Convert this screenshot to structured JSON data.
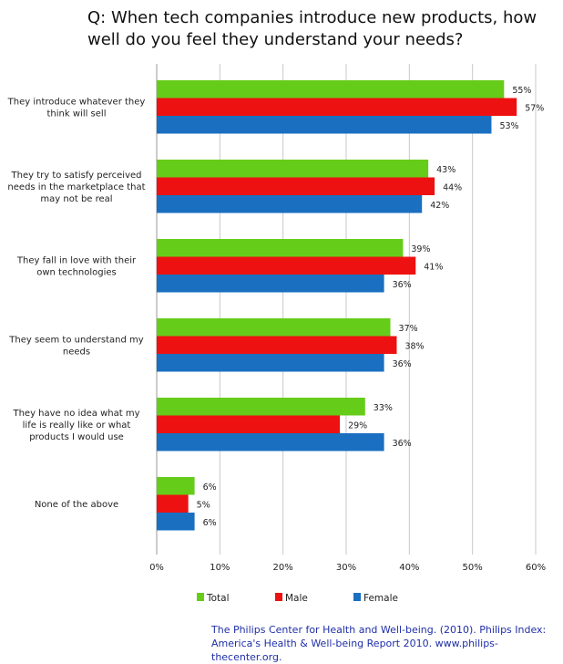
{
  "chart_data": {
    "type": "bar",
    "orientation": "horizontal",
    "title": "Q: When tech companies introduce new products, how well do you feel they understand your needs?",
    "categories": [
      [
        "They introduce whatever they",
        "think will sell"
      ],
      [
        "They try to satisfy perceived",
        "needs in the marketplace that",
        "may not be real"
      ],
      [
        "They fall in love with their",
        "own technologies"
      ],
      [
        "They seem to understand my",
        "needs"
      ],
      [
        "They have no idea what my",
        "life is really like or what",
        "products I would use"
      ],
      [
        "None of the above"
      ]
    ],
    "series": [
      {
        "name": "Total",
        "color": "#66cc1a",
        "values": [
          55,
          43,
          39,
          37,
          33,
          6
        ]
      },
      {
        "name": "Male",
        "color": "#ee1111",
        "values": [
          57,
          44,
          41,
          38,
          29,
          5
        ]
      },
      {
        "name": "Female",
        "color": "#1a6fc0",
        "values": [
          53,
          42,
          36,
          36,
          36,
          6
        ]
      }
    ],
    "xlim": [
      0,
      60
    ],
    "xticks": [
      "0%",
      "10%",
      "20%",
      "30%",
      "40%",
      "50%",
      "60%"
    ],
    "value_suffix": "%",
    "grid": true,
    "legend_position": "bottom"
  },
  "source": "The Philips Center for Health and Well-being. (2010). Philips Index: America's Health & Well-being Report 2010. www.philips-thecenter.org."
}
